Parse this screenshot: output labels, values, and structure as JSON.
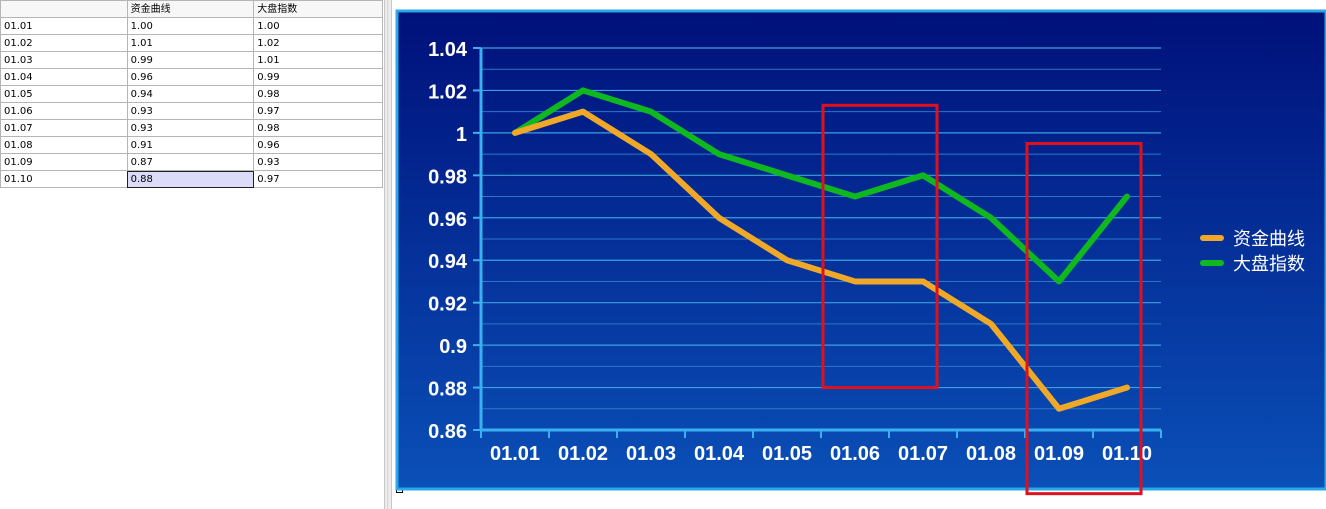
{
  "sheet": {
    "headers": [
      "",
      "资金曲线",
      "大盘指数"
    ],
    "rows": [
      [
        "01.01",
        "1.00",
        "1.00"
      ],
      [
        "01.02",
        "1.01",
        "1.02"
      ],
      [
        "01.03",
        "0.99",
        "1.01"
      ],
      [
        "01.04",
        "0.96",
        "0.99"
      ],
      [
        "01.05",
        "0.94",
        "0.98"
      ],
      [
        "01.06",
        "0.93",
        "0.97"
      ],
      [
        "01.07",
        "0.93",
        "0.98"
      ],
      [
        "01.08",
        "0.91",
        "0.96"
      ],
      [
        "01.09",
        "0.87",
        "0.93"
      ],
      [
        "01.10",
        "0.88",
        "0.97"
      ]
    ],
    "selected_cell": "B10"
  },
  "chart_data": {
    "type": "line",
    "categories": [
      "01.01",
      "01.02",
      "01.03",
      "01.04",
      "01.05",
      "01.06",
      "01.07",
      "01.08",
      "01.09",
      "01.10"
    ],
    "series": [
      {
        "name": "资金曲线",
        "color": "#f0a828",
        "values": [
          1.0,
          1.01,
          0.99,
          0.96,
          0.94,
          0.93,
          0.93,
          0.91,
          0.87,
          0.88
        ]
      },
      {
        "name": "大盘指数",
        "color": "#10b820",
        "values": [
          1.0,
          1.02,
          1.01,
          0.99,
          0.98,
          0.97,
          0.98,
          0.96,
          0.93,
          0.97
        ]
      }
    ],
    "y_ticks": [
      "0.86",
      "0.88",
      "0.9",
      "0.92",
      "0.94",
      "0.96",
      "0.98",
      "1",
      "1.02",
      "1.04"
    ],
    "ylim": [
      0.86,
      1.04
    ],
    "grid": true,
    "legend_position": "right",
    "background": [
      "#00107a",
      "#0a50b8"
    ],
    "annotations": [
      {
        "type": "highlight-box",
        "color": "#e0101c",
        "x_from": "01.06",
        "x_to": "01.07",
        "y_from": 0.88,
        "y_to": 1.013
      },
      {
        "type": "highlight-box",
        "color": "#e0101c",
        "x_from": "01.09",
        "x_to": "01.10",
        "y_from": 0.83,
        "y_to": 0.995
      }
    ]
  }
}
